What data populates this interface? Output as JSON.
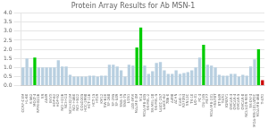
{
  "chart_data": {
    "type": "bar",
    "title": "Protein Array Results for Ab MSN-1",
    "categories": [
      "CCRF-CEM",
      "HL-60",
      "K-562",
      "MOLT-4",
      "RPMI-8226",
      "SR",
      "A549",
      "EKVX",
      "HOP-62",
      "HOP-92",
      "NCI-H226",
      "NCI-H23",
      "NCI-H322M",
      "NCI-H460",
      "NCI-H522",
      "COLO205",
      "HCC-2998",
      "HCT-116",
      "HCT-15",
      "HT29",
      "KM12",
      "SW-620",
      "SF-268",
      "SF-295",
      "SF-539",
      "SNB-19",
      "SNB-75",
      "U251",
      "LOX-IMVI",
      "MALME-3M",
      "M14",
      "MDA-MB-435",
      "SK-MEL-2",
      "SK-MEL-28",
      "SK-MEL-5",
      "UACC-257",
      "UACC-62",
      "786-0",
      "A498",
      "ACHN",
      "CAKI-1",
      "RXF393",
      "SN12C",
      "TK-10",
      "UO-31",
      "PC-3",
      "DU-145",
      "MCF7",
      "MDA-MB-231",
      "HS578T",
      "BT-549",
      "T47D",
      "IGROV1",
      "OVCAR-3",
      "OVCAR-4",
      "OVCAR-5",
      "OVCAR-8",
      "NCI/ADR-RES",
      "SK-OV-3",
      "MDA-MB-231/ATCC",
      "MDA-MB-468",
      "T-47D"
    ],
    "values": [
      1.0,
      1.5,
      1.0,
      1.55,
      1.0,
      1.0,
      1.0,
      1.0,
      1.0,
      1.4,
      1.05,
      1.05,
      0.6,
      0.5,
      0.5,
      0.5,
      0.5,
      0.55,
      0.55,
      0.5,
      0.55,
      0.55,
      1.15,
      1.15,
      1.05,
      0.85,
      0.5,
      1.15,
      1.1,
      2.1,
      3.2,
      1.1,
      0.65,
      0.8,
      1.25,
      1.3,
      0.85,
      0.65,
      0.65,
      0.85,
      0.65,
      0.7,
      0.75,
      0.85,
      1.0,
      1.55,
      2.25,
      1.15,
      1.1,
      1.0,
      0.6,
      0.55,
      0.55,
      0.65,
      0.65,
      0.5,
      0.6,
      0.55,
      1.05,
      1.45,
      2.0,
      0.3
    ],
    "colors": [
      "#b8cfe0",
      "#b8cfe0",
      "#b8cfe0",
      "#00cc00",
      "#b8cfe0",
      "#b8cfe0",
      "#b8cfe0",
      "#b8cfe0",
      "#b8cfe0",
      "#b8cfe0",
      "#b8cfe0",
      "#b8cfe0",
      "#b8cfe0",
      "#b8cfe0",
      "#b8cfe0",
      "#b8cfe0",
      "#b8cfe0",
      "#b8cfe0",
      "#b8cfe0",
      "#b8cfe0",
      "#b8cfe0",
      "#b8cfe0",
      "#b8cfe0",
      "#b8cfe0",
      "#b8cfe0",
      "#b8cfe0",
      "#b8cfe0",
      "#b8cfe0",
      "#b8cfe0",
      "#00cc00",
      "#00cc00",
      "#b8cfe0",
      "#b8cfe0",
      "#b8cfe0",
      "#b8cfe0",
      "#b8cfe0",
      "#b8cfe0",
      "#b8cfe0",
      "#b8cfe0",
      "#b8cfe0",
      "#b8cfe0",
      "#b8cfe0",
      "#b8cfe0",
      "#b8cfe0",
      "#b8cfe0",
      "#b8cfe0",
      "#00cc00",
      "#b8cfe0",
      "#b8cfe0",
      "#b8cfe0",
      "#b8cfe0",
      "#b8cfe0",
      "#b8cfe0",
      "#b8cfe0",
      "#b8cfe0",
      "#b8cfe0",
      "#b8cfe0",
      "#b8cfe0",
      "#b8cfe0",
      "#b8cfe0",
      "#00cc00",
      "#cc0000"
    ],
    "ylim": [
      0,
      4.0
    ],
    "yticks": [
      {
        "value": 0.0,
        "label": "0.0"
      },
      0.5,
      {
        "value": 1.0,
        "label": "1.0"
      },
      1.5,
      {
        "value": 2.0,
        "label": "2.0"
      },
      2.5,
      {
        "value": 3.0,
        "label": "3.0"
      },
      3.5,
      {
        "value": 4.0,
        "label": "4.0"
      }
    ],
    "grid": true
  }
}
